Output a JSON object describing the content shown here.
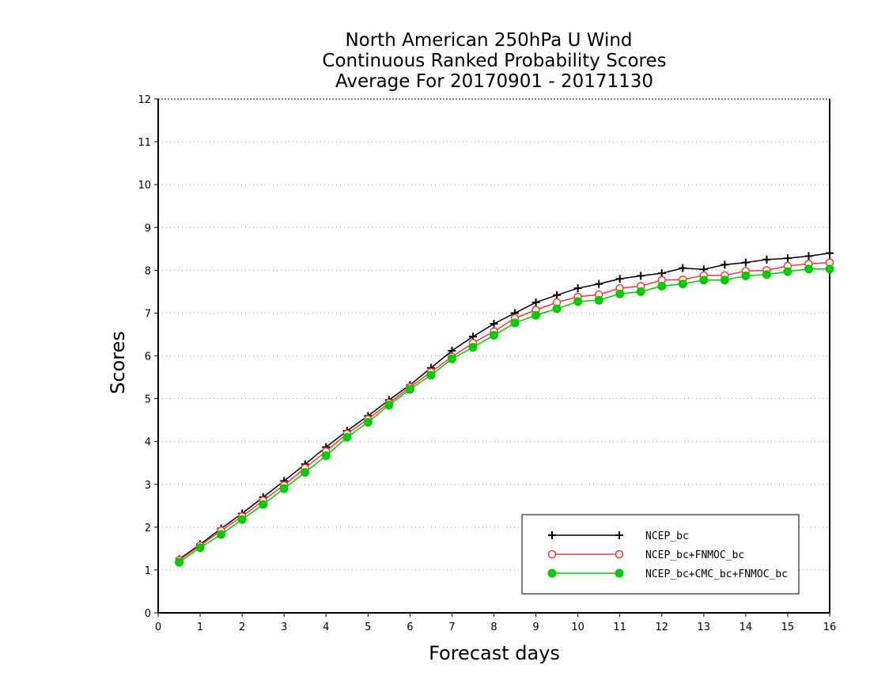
{
  "chart_data": {
    "type": "line",
    "title": [
      "North American 250hPa U Wind",
      "Continuous Ranked Probability Scores",
      "Average For 20170901 - 20171130"
    ],
    "xlabel": "Forecast days",
    "ylabel": "Scores",
    "xlim": [
      0,
      16
    ],
    "ylim": [
      0,
      12
    ],
    "xticks": [
      "0",
      "1",
      "2",
      "3",
      "4",
      "5",
      "6",
      "7",
      "8",
      "9",
      "10",
      "11",
      "12",
      "13",
      "14",
      "15",
      "16"
    ],
    "yticks": [
      "0",
      "1",
      "2",
      "3",
      "4",
      "5",
      "6",
      "7",
      "8",
      "9",
      "10",
      "11",
      "12"
    ],
    "grid": "horizontal-dotted",
    "legend_position": "bottom-right",
    "x": [
      0.5,
      1,
      1.5,
      2,
      2.5,
      3,
      3.5,
      4,
      4.5,
      5,
      5.5,
      6,
      6.5,
      7,
      7.5,
      8,
      8.5,
      9,
      9.5,
      10,
      10.5,
      11,
      11.5,
      12,
      12.5,
      13,
      13.5,
      14,
      14.5,
      15,
      15.5,
      16
    ],
    "series": [
      {
        "name": "NCEP_bc",
        "color": "#000000",
        "marker": "plus",
        "values": [
          1.25,
          1.6,
          1.97,
          2.32,
          2.7,
          3.08,
          3.47,
          3.87,
          4.25,
          4.6,
          4.97,
          5.32,
          5.72,
          6.12,
          6.45,
          6.75,
          7.0,
          7.25,
          7.42,
          7.58,
          7.68,
          7.8,
          7.87,
          7.93,
          8.05,
          8.02,
          8.13,
          8.18,
          8.25,
          8.28,
          8.33,
          8.4
        ]
      },
      {
        "name": "NCEP_bc+FNMOC_bc",
        "color": "#ff3333",
        "marker": "open-circle",
        "values": [
          1.23,
          1.57,
          1.92,
          2.25,
          2.62,
          2.98,
          3.38,
          3.77,
          4.18,
          4.52,
          4.9,
          5.27,
          5.62,
          5.98,
          6.3,
          6.57,
          6.88,
          7.07,
          7.25,
          7.38,
          7.43,
          7.58,
          7.63,
          7.77,
          7.78,
          7.88,
          7.88,
          7.98,
          8.0,
          8.1,
          8.15,
          8.18
        ]
      },
      {
        "name": "NCEP_bc+CMC_bc+FNMOC_bc",
        "color": "#00cc00",
        "marker": "filled-circle",
        "values": [
          1.18,
          1.52,
          1.83,
          2.18,
          2.53,
          2.9,
          3.28,
          3.67,
          4.1,
          4.45,
          4.85,
          5.22,
          5.55,
          5.93,
          6.2,
          6.48,
          6.77,
          6.95,
          7.1,
          7.27,
          7.3,
          7.45,
          7.5,
          7.63,
          7.68,
          7.77,
          7.77,
          7.87,
          7.9,
          7.97,
          8.03,
          8.03
        ]
      }
    ]
  }
}
